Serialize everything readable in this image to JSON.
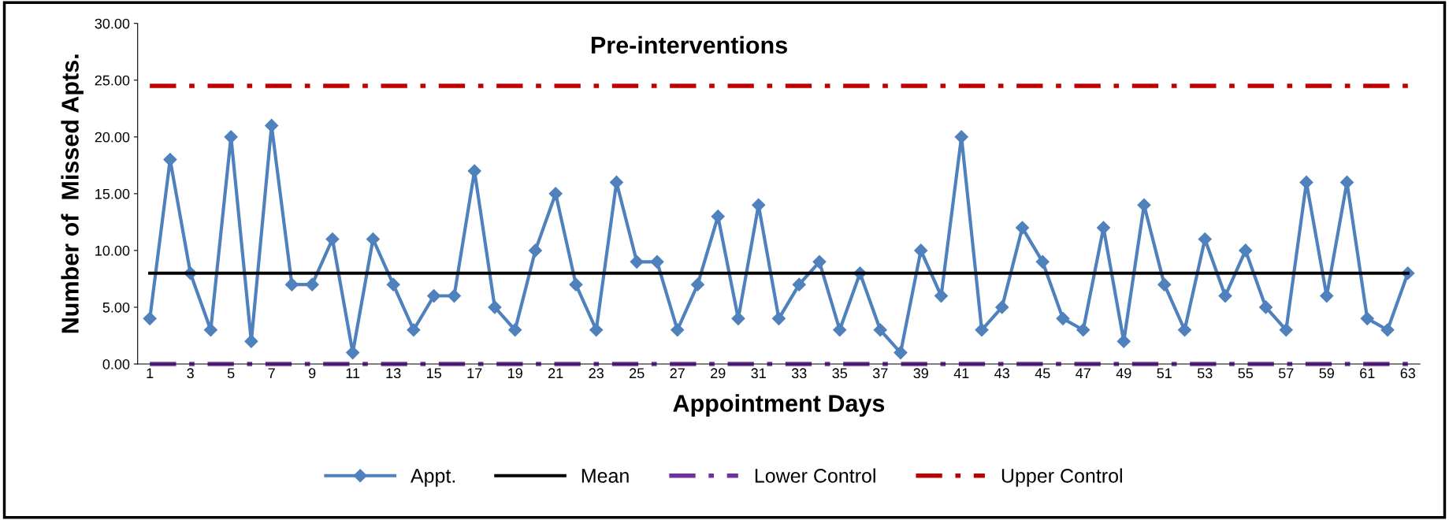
{
  "chart_data": {
    "type": "line",
    "title": "Pre-interventions",
    "xlabel": "Appointment Days",
    "ylabel": "Number of  Missed Apts.",
    "categories": [
      "1",
      null,
      "3",
      null,
      "5",
      null,
      "7",
      null,
      "9",
      null,
      "11",
      null,
      "13",
      null,
      "15",
      null,
      "17",
      null,
      "19",
      null,
      "21",
      null,
      "23",
      null,
      "25",
      null,
      "27",
      null,
      "29",
      null,
      "31",
      null,
      "33",
      null,
      "35",
      null,
      "37",
      null,
      "39",
      null,
      "41",
      null,
      "43",
      null,
      "45",
      null,
      "47",
      null,
      "49",
      null,
      "51",
      null,
      "53",
      null,
      "55",
      null,
      "57",
      null,
      "59",
      null,
      "61",
      null,
      "63"
    ],
    "series": [
      {
        "name": "Appt.",
        "color": "#4f81bd",
        "marker": "diamond",
        "line_style": "solid",
        "values": [
          4,
          18,
          8,
          3,
          20,
          2,
          21,
          7,
          7,
          11,
          1,
          11,
          7,
          3,
          6,
          6,
          17,
          5,
          3,
          10,
          15,
          7,
          3,
          16,
          9,
          9,
          3,
          7,
          13,
          4,
          14,
          4,
          7,
          9,
          3,
          8,
          3,
          1,
          10,
          6,
          20,
          3,
          5,
          12,
          9,
          4,
          3,
          12,
          2,
          14,
          7,
          3,
          11,
          6,
          10,
          5,
          3,
          16,
          6,
          16,
          4,
          3,
          8
        ]
      },
      {
        "name": "Mean",
        "color": "#000000",
        "marker": "none",
        "line_style": "solid",
        "values": [
          8,
          8,
          8,
          8,
          8,
          8,
          8,
          8,
          8,
          8,
          8,
          8,
          8,
          8,
          8,
          8,
          8,
          8,
          8,
          8,
          8,
          8,
          8,
          8,
          8,
          8,
          8,
          8,
          8,
          8,
          8,
          8,
          8,
          8,
          8,
          8,
          8,
          8,
          8,
          8,
          8,
          8,
          8,
          8,
          8,
          8,
          8,
          8,
          8,
          8,
          8,
          8,
          8,
          8,
          8,
          8,
          8,
          8,
          8,
          8,
          8,
          8,
          8
        ]
      },
      {
        "name": "Lower Control",
        "color": "#7030a0",
        "marker": "none",
        "line_style": "dashdot",
        "values": [
          0,
          0,
          0,
          0,
          0,
          0,
          0,
          0,
          0,
          0,
          0,
          0,
          0,
          0,
          0,
          0,
          0,
          0,
          0,
          0,
          0,
          0,
          0,
          0,
          0,
          0,
          0,
          0,
          0,
          0,
          0,
          0,
          0,
          0,
          0,
          0,
          0,
          0,
          0,
          0,
          0,
          0,
          0,
          0,
          0,
          0,
          0,
          0,
          0,
          0,
          0,
          0,
          0,
          0,
          0,
          0,
          0,
          0,
          0,
          0,
          0,
          0,
          0
        ]
      },
      {
        "name": "Upper Control",
        "color": "#c00000",
        "marker": "none",
        "line_style": "dashdot",
        "values": [
          24.5,
          24.5,
          24.5,
          24.5,
          24.5,
          24.5,
          24.5,
          24.5,
          24.5,
          24.5,
          24.5,
          24.5,
          24.5,
          24.5,
          24.5,
          24.5,
          24.5,
          24.5,
          24.5,
          24.5,
          24.5,
          24.5,
          24.5,
          24.5,
          24.5,
          24.5,
          24.5,
          24.5,
          24.5,
          24.5,
          24.5,
          24.5,
          24.5,
          24.5,
          24.5,
          24.5,
          24.5,
          24.5,
          24.5,
          24.5,
          24.5,
          24.5,
          24.5,
          24.5,
          24.5,
          24.5,
          24.5,
          24.5,
          24.5,
          24.5,
          24.5,
          24.5,
          24.5,
          24.5,
          24.5,
          24.5,
          24.5,
          24.5,
          24.5,
          24.5,
          24.5,
          24.5,
          24.5
        ]
      }
    ],
    "ylim": [
      0,
      30
    ],
    "yticks": [
      {
        "value": 0,
        "label": "0.00"
      },
      {
        "value": 5,
        "label": "5.00"
      },
      {
        "value": 10,
        "label": "10.00"
      },
      {
        "value": 15,
        "label": "15.00"
      },
      {
        "value": 20,
        "label": "20.00"
      },
      {
        "value": 25,
        "label": "25.00"
      },
      {
        "value": 30,
        "label": "30.00"
      }
    ],
    "grid": false,
    "legend": "bottom"
  }
}
